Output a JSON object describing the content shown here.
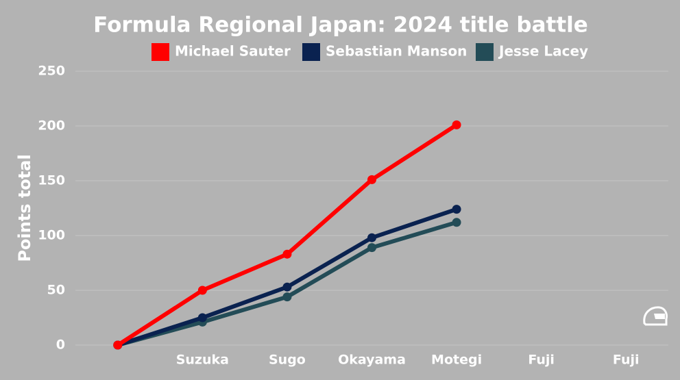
{
  "chart_data": {
    "type": "line",
    "title": "Formula Regional Japan: 2024 title battle",
    "y_label": "Points total",
    "categories": [
      null,
      "Suzuka",
      "Sugo",
      "Okayama",
      "Motegi",
      "Fuji",
      "Fuji"
    ],
    "series": [
      {
        "name": "Michael Sauter",
        "color": "#ff0000",
        "values": [
          0,
          50,
          83,
          151,
          201,
          null,
          null
        ]
      },
      {
        "name": "Sebastian Manson",
        "color": "#0a2250",
        "values": [
          0,
          25,
          53,
          98,
          124,
          null,
          null
        ]
      },
      {
        "name": "Jesse Lacey",
        "color": "#234c57",
        "values": [
          0,
          21,
          44,
          89,
          112,
          null,
          null
        ]
      }
    ],
    "ylim": [
      0,
      250
    ],
    "yticks": [
      0,
      50,
      100,
      150,
      200,
      250
    ],
    "grid": true
  }
}
